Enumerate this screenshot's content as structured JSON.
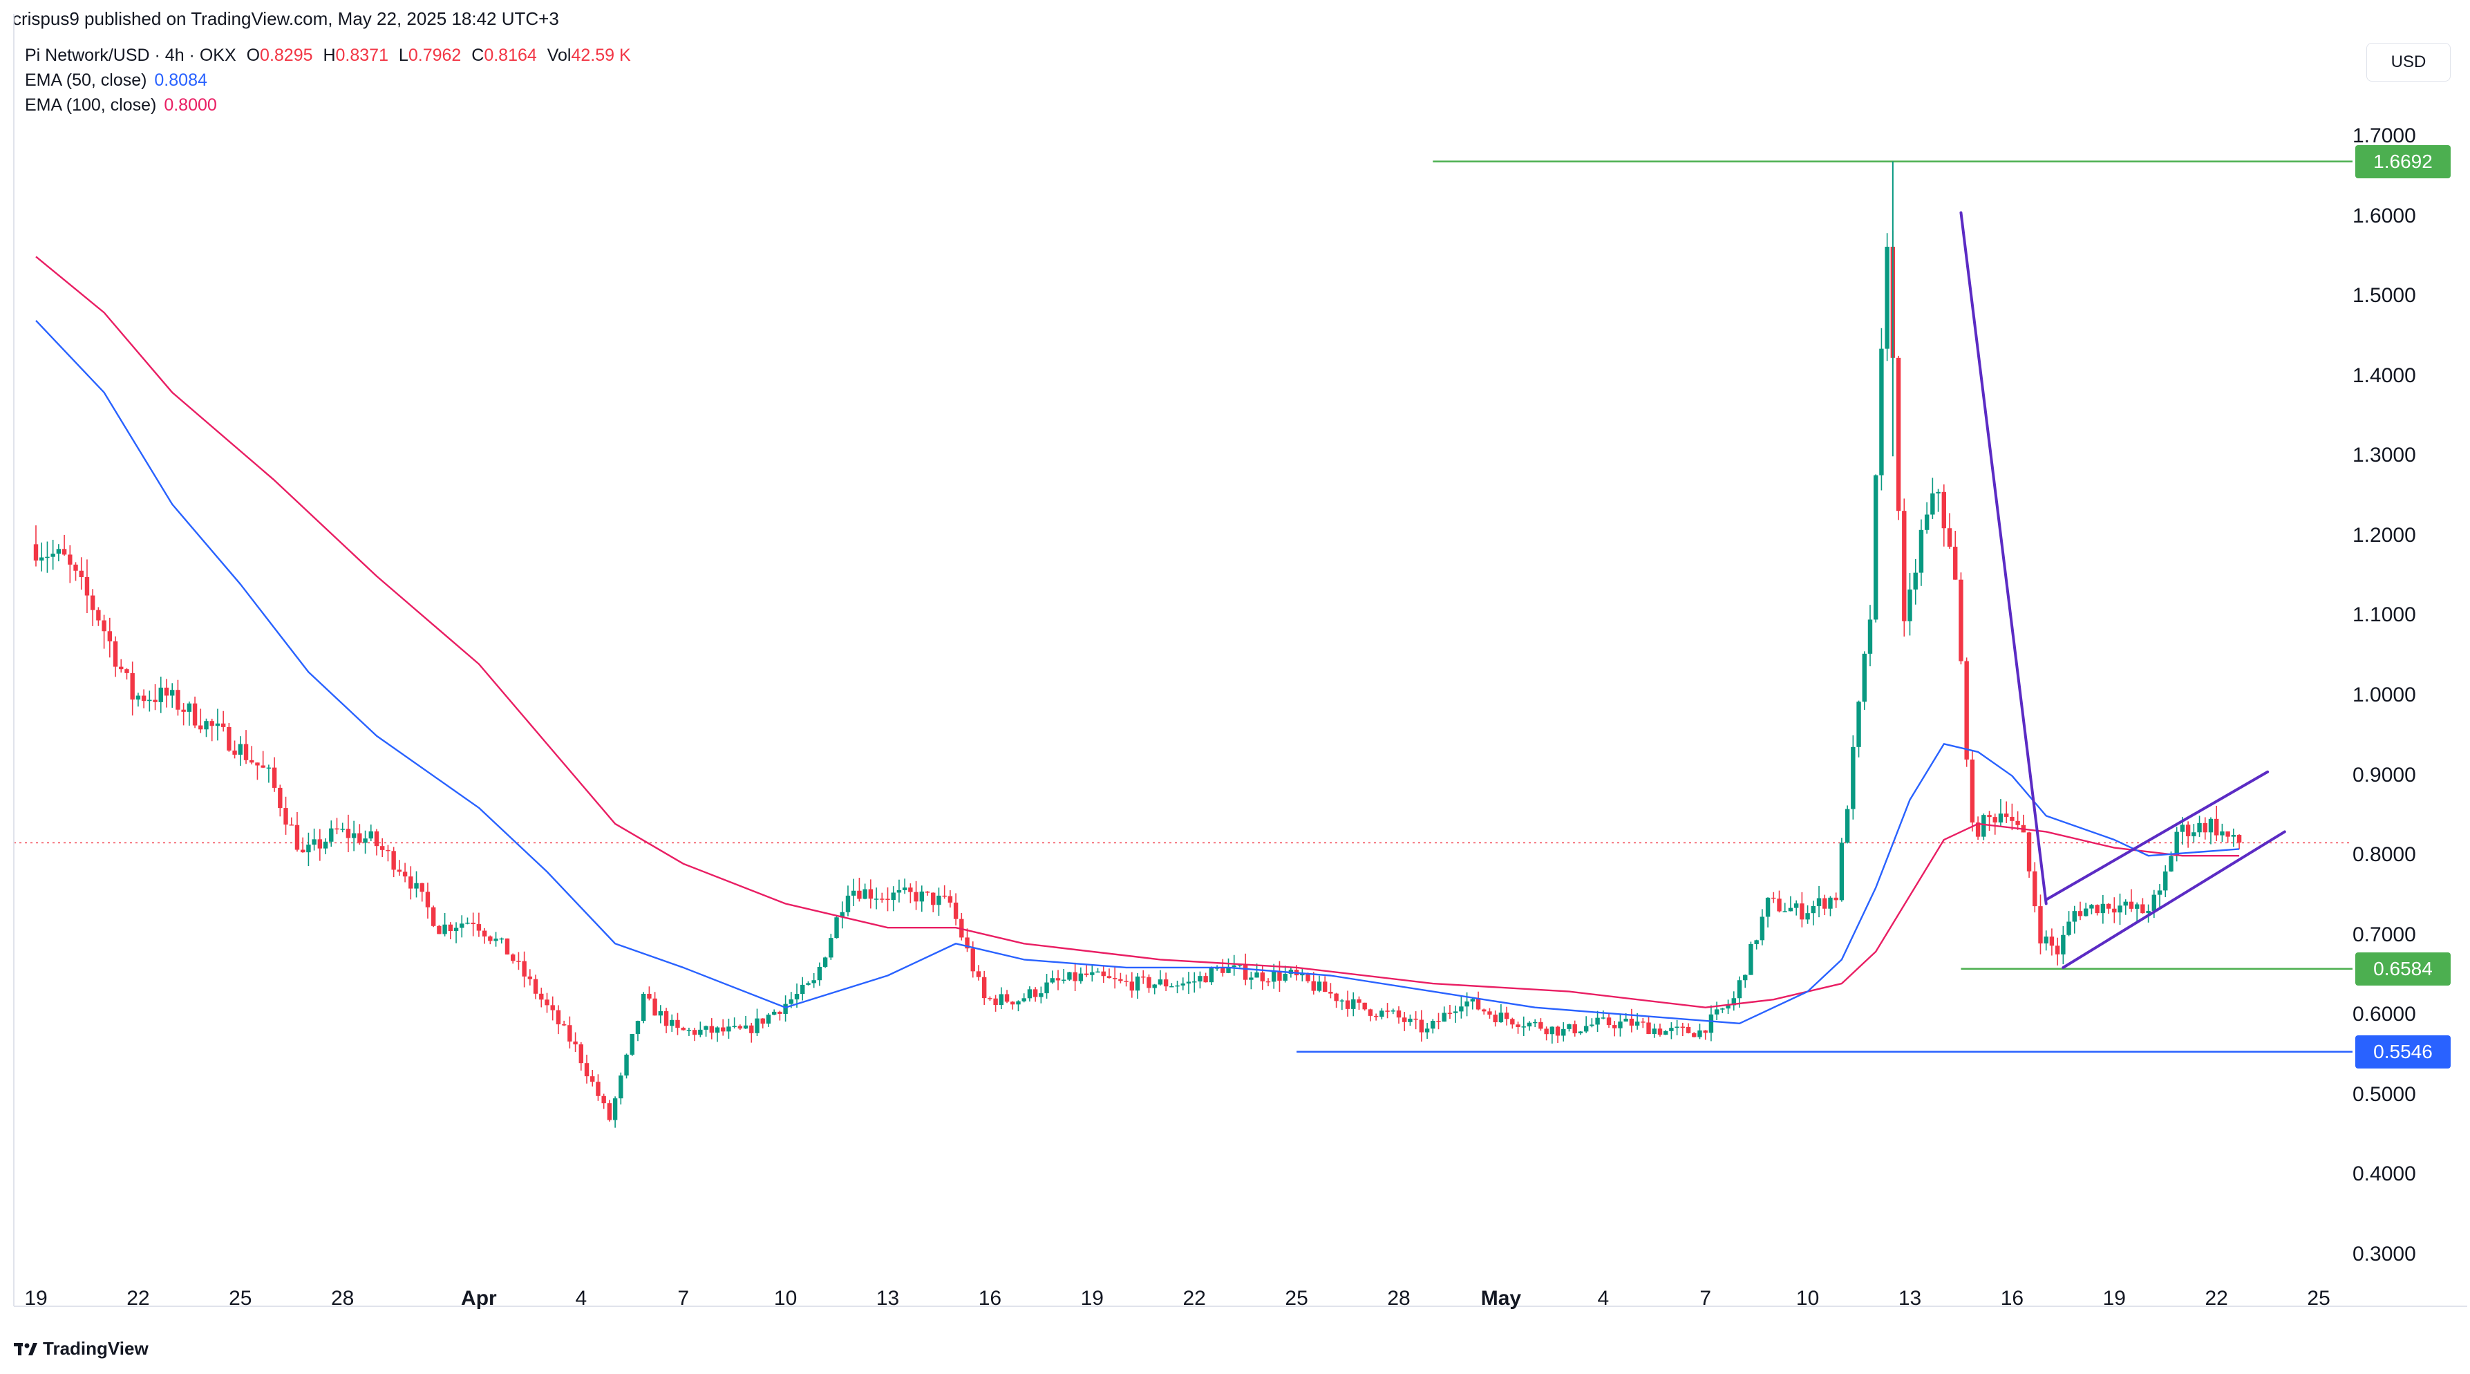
{
  "header": {
    "published": "crispus9 published on TradingView.com, May 22, 2025 18:42 UTC+3"
  },
  "legend": {
    "symbol": "Pi Network/USD · 4h · OKX",
    "ohlc": [
      {
        "k": "O",
        "v": "0.8295"
      },
      {
        "k": "H",
        "v": "0.8371"
      },
      {
        "k": "L",
        "v": "0.7962"
      },
      {
        "k": "C",
        "v": "0.8164"
      },
      {
        "k": "Vol",
        "v": "42.59 K"
      }
    ],
    "ema50_label": "EMA (50, close)",
    "ema50_value": "0.8084",
    "ema100_label": "EMA (100, close)",
    "ema100_value": "0.8000"
  },
  "currency": "USD",
  "brand": "TradingView",
  "colors": {
    "up": "#089981",
    "down": "#f23645",
    "ema50": "#2962ff",
    "ema100": "#e91e63",
    "resistance": "#4caf50",
    "support": "#2962ff",
    "pattern": "#5b2bc4"
  },
  "chart_data": {
    "type": "candlestick",
    "y_axis": {
      "ylim": [
        0.26,
        1.78
      ],
      "ticks": [
        "1.7000",
        "1.6000",
        "1.5000",
        "1.4000",
        "1.3000",
        "1.2000",
        "1.1000",
        "1.0000",
        "0.9000",
        "0.8000",
        "0.7000",
        "0.6000",
        "0.5000",
        "0.4000",
        "0.3000"
      ]
    },
    "x_axis": {
      "ticks": [
        {
          "label": "19",
          "date": "2025-03-19"
        },
        {
          "label": "22",
          "date": "2025-03-22"
        },
        {
          "label": "25",
          "date": "2025-03-25"
        },
        {
          "label": "28",
          "date": "2025-03-28"
        },
        {
          "label": "Apr",
          "date": "2025-04-01",
          "bold": true
        },
        {
          "label": "4",
          "date": "2025-04-04"
        },
        {
          "label": "7",
          "date": "2025-04-07"
        },
        {
          "label": "10",
          "date": "2025-04-10"
        },
        {
          "label": "13",
          "date": "2025-04-13"
        },
        {
          "label": "16",
          "date": "2025-04-16"
        },
        {
          "label": "19",
          "date": "2025-04-19"
        },
        {
          "label": "22",
          "date": "2025-04-22"
        },
        {
          "label": "25",
          "date": "2025-04-25"
        },
        {
          "label": "28",
          "date": "2025-04-28"
        },
        {
          "label": "May",
          "date": "2025-05-01",
          "bold": true
        },
        {
          "label": "4",
          "date": "2025-05-04"
        },
        {
          "label": "7",
          "date": "2025-05-07"
        },
        {
          "label": "10",
          "date": "2025-05-10"
        },
        {
          "label": "13",
          "date": "2025-05-13"
        },
        {
          "label": "16",
          "date": "2025-05-16"
        },
        {
          "label": "19",
          "date": "2025-05-19"
        },
        {
          "label": "22",
          "date": "2025-05-22"
        },
        {
          "label": "25",
          "date": "2025-05-25"
        }
      ]
    },
    "price_path": [
      [
        "2025-03-19",
        1.19
      ],
      [
        "2025-03-20",
        1.17
      ],
      [
        "2025-03-21",
        1.1
      ],
      [
        "2025-03-22",
        1.0
      ],
      [
        "2025-03-23",
        1.0
      ],
      [
        "2025-03-24",
        0.97
      ],
      [
        "2025-03-25",
        0.94
      ],
      [
        "2025-03-26",
        0.9
      ],
      [
        "2025-03-27",
        0.8
      ],
      [
        "2025-03-28",
        0.83
      ],
      [
        "2025-03-29",
        0.82
      ],
      [
        "2025-03-30",
        0.78
      ],
      [
        "2025-03-31",
        0.71
      ],
      [
        "2025-04-01",
        0.72
      ],
      [
        "2025-04-02",
        0.68
      ],
      [
        "2025-04-03",
        0.62
      ],
      [
        "2025-04-04",
        0.56
      ],
      [
        "2025-04-05",
        0.47
      ],
      [
        "2025-04-06",
        0.62
      ],
      [
        "2025-04-07",
        0.58
      ],
      [
        "2025-04-08",
        0.58
      ],
      [
        "2025-04-09",
        0.58
      ],
      [
        "2025-04-10",
        0.61
      ],
      [
        "2025-04-11",
        0.64
      ],
      [
        "2025-04-12",
        0.76
      ],
      [
        "2025-04-13",
        0.75
      ],
      [
        "2025-04-14",
        0.75
      ],
      [
        "2025-04-15",
        0.74
      ],
      [
        "2025-04-16",
        0.62
      ],
      [
        "2025-04-17",
        0.62
      ],
      [
        "2025-04-18",
        0.64
      ],
      [
        "2025-04-19",
        0.65
      ],
      [
        "2025-04-20",
        0.64
      ],
      [
        "2025-04-21",
        0.64
      ],
      [
        "2025-04-22",
        0.64
      ],
      [
        "2025-04-23",
        0.66
      ],
      [
        "2025-04-24",
        0.65
      ],
      [
        "2025-04-25",
        0.65
      ],
      [
        "2025-04-26",
        0.63
      ],
      [
        "2025-04-27",
        0.61
      ],
      [
        "2025-04-28",
        0.6
      ],
      [
        "2025-04-29",
        0.58
      ],
      [
        "2025-04-30",
        0.62
      ],
      [
        "2025-05-01",
        0.6
      ],
      [
        "2025-05-02",
        0.59
      ],
      [
        "2025-05-03",
        0.58
      ],
      [
        "2025-05-04",
        0.59
      ],
      [
        "2025-05-05",
        0.59
      ],
      [
        "2025-05-06",
        0.58
      ],
      [
        "2025-05-07",
        0.58
      ],
      [
        "2025-05-08",
        0.62
      ],
      [
        "2025-05-09",
        0.74
      ],
      [
        "2025-05-10",
        0.73
      ],
      [
        "2025-05-11",
        0.75
      ],
      [
        "2025-05-12",
        1.1
      ],
      [
        "2025-05-12T12:00",
        1.58
      ],
      [
        "2025-05-13",
        1.08
      ],
      [
        "2025-05-13T12:00",
        1.2
      ],
      [
        "2025-05-14",
        1.26
      ],
      [
        "2025-05-14T12:00",
        1.14
      ],
      [
        "2025-05-15",
        0.83
      ],
      [
        "2025-05-16",
        0.86
      ],
      [
        "2025-05-16T12:00",
        0.82
      ],
      [
        "2025-05-17",
        0.7
      ],
      [
        "2025-05-17T12:00",
        0.68
      ],
      [
        "2025-05-18",
        0.73
      ],
      [
        "2025-05-19",
        0.74
      ],
      [
        "2025-05-20",
        0.73
      ],
      [
        "2025-05-20T12:00",
        0.75
      ],
      [
        "2025-05-21",
        0.83
      ],
      [
        "2025-05-22",
        0.84
      ],
      [
        "2025-05-22T16:00",
        0.8164
      ]
    ],
    "ema50": [
      [
        "2025-03-19",
        1.47
      ],
      [
        "2025-03-21",
        1.38
      ],
      [
        "2025-03-23",
        1.24
      ],
      [
        "2025-03-25",
        1.14
      ],
      [
        "2025-03-27",
        1.03
      ],
      [
        "2025-03-29",
        0.95
      ],
      [
        "2025-04-01",
        0.86
      ],
      [
        "2025-04-03",
        0.78
      ],
      [
        "2025-04-05",
        0.69
      ],
      [
        "2025-04-07",
        0.66
      ],
      [
        "2025-04-10",
        0.61
      ],
      [
        "2025-04-13",
        0.65
      ],
      [
        "2025-04-15",
        0.69
      ],
      [
        "2025-04-17",
        0.67
      ],
      [
        "2025-04-20",
        0.66
      ],
      [
        "2025-04-23",
        0.66
      ],
      [
        "2025-04-26",
        0.65
      ],
      [
        "2025-04-29",
        0.63
      ],
      [
        "2025-05-02",
        0.61
      ],
      [
        "2025-05-05",
        0.6
      ],
      [
        "2025-05-08",
        0.59
      ],
      [
        "2025-05-10",
        0.63
      ],
      [
        "2025-05-11",
        0.67
      ],
      [
        "2025-05-12",
        0.76
      ],
      [
        "2025-05-13",
        0.87
      ],
      [
        "2025-05-14",
        0.94
      ],
      [
        "2025-05-15",
        0.93
      ],
      [
        "2025-05-16",
        0.9
      ],
      [
        "2025-05-17",
        0.85
      ],
      [
        "2025-05-19",
        0.82
      ],
      [
        "2025-05-20",
        0.8
      ],
      [
        "2025-05-22T16:00",
        0.8084
      ]
    ],
    "ema100": [
      [
        "2025-03-19",
        1.55
      ],
      [
        "2025-03-21",
        1.48
      ],
      [
        "2025-03-23",
        1.38
      ],
      [
        "2025-03-26",
        1.27
      ],
      [
        "2025-03-29",
        1.15
      ],
      [
        "2025-04-01",
        1.04
      ],
      [
        "2025-04-03",
        0.94
      ],
      [
        "2025-04-05",
        0.84
      ],
      [
        "2025-04-07",
        0.79
      ],
      [
        "2025-04-10",
        0.74
      ],
      [
        "2025-04-13",
        0.71
      ],
      [
        "2025-04-15",
        0.71
      ],
      [
        "2025-04-17",
        0.69
      ],
      [
        "2025-04-21",
        0.67
      ],
      [
        "2025-04-25",
        0.66
      ],
      [
        "2025-04-29",
        0.64
      ],
      [
        "2025-05-03",
        0.63
      ],
      [
        "2025-05-07",
        0.61
      ],
      [
        "2025-05-09",
        0.62
      ],
      [
        "2025-05-11",
        0.64
      ],
      [
        "2025-05-12",
        0.68
      ],
      [
        "2025-05-13",
        0.75
      ],
      [
        "2025-05-14",
        0.82
      ],
      [
        "2025-05-15",
        0.84
      ],
      [
        "2025-05-17",
        0.83
      ],
      [
        "2025-05-19",
        0.81
      ],
      [
        "2025-05-21",
        0.8
      ],
      [
        "2025-05-22T16:00",
        0.8
      ]
    ],
    "horizontal_levels": [
      {
        "name": "resistance",
        "value": 1.6692,
        "label": "1.6692",
        "from": "2025-04-29",
        "color": "#4caf50"
      },
      {
        "name": "mid-support",
        "value": 0.6584,
        "label": "0.6584",
        "from": "2025-05-14T12:00",
        "color": "#4caf50"
      },
      {
        "name": "support",
        "value": 0.5546,
        "label": "0.5546",
        "from": "2025-04-25",
        "color": "#2962ff"
      }
    ],
    "current_price": 0.8164,
    "trendlines": [
      {
        "name": "flagpole",
        "x1": "2025-05-14T12:00",
        "y1": 1.605,
        "x2": "2025-05-17",
        "y2": 0.74
      },
      {
        "name": "flag-upper",
        "x1": "2025-05-17",
        "y1": 0.745,
        "x2": "2025-05-23T12:00",
        "y2": 0.905
      },
      {
        "name": "flag-lower",
        "x1": "2025-05-17T12:00",
        "y1": 0.66,
        "x2": "2025-05-24",
        "y2": 0.83
      }
    ]
  }
}
